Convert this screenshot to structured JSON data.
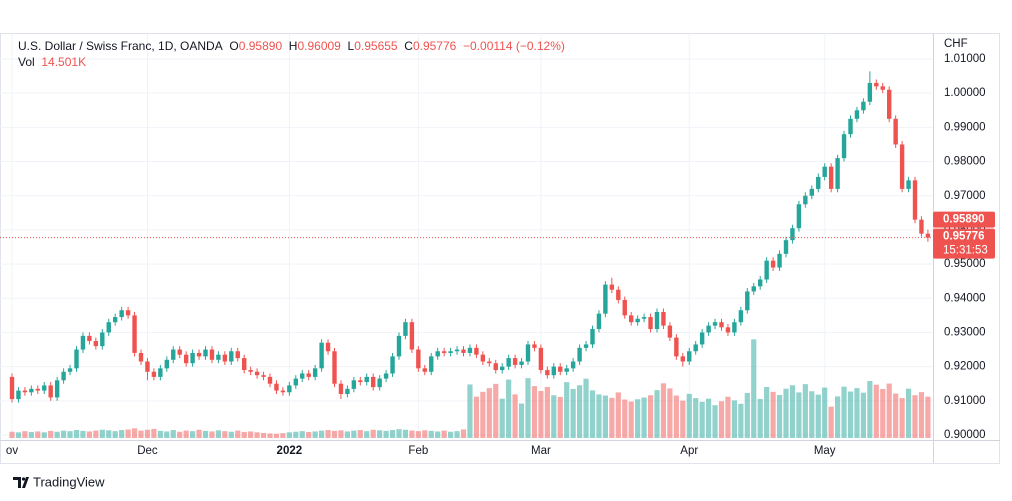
{
  "header": {
    "symbol": "U.S. Dollar / Swiss Franc, 1D, OANDA",
    "ohlc": [
      {
        "label": "O",
        "value": "0.95890"
      },
      {
        "label": "H",
        "value": "0.96009"
      },
      {
        "label": "L",
        "value": "0.95655"
      },
      {
        "label": "C",
        "value": "0.95776"
      }
    ],
    "change": "−0.00114 (−0.12%)",
    "vol_label": "Vol",
    "vol_value": "14.501K"
  },
  "chart_data": {
    "type": "candlestick",
    "open": [
      0.917,
      0.9105,
      0.913,
      0.9125,
      0.9135,
      0.913,
      0.9145,
      0.911,
      0.916,
      0.9185,
      0.9195,
      0.925,
      0.929,
      0.9275,
      0.926,
      0.93,
      0.933,
      0.9345,
      0.9365,
      0.935,
      0.924,
      0.9215,
      0.9185,
      0.917,
      0.9195,
      0.922,
      0.925,
      0.9235,
      0.921,
      0.924,
      0.923,
      0.925,
      0.922,
      0.9235,
      0.9215,
      0.9245,
      0.9225,
      0.919,
      0.9185,
      0.9175,
      0.917,
      0.915,
      0.913,
      0.9125,
      0.9145,
      0.9165,
      0.918,
      0.917,
      0.9195,
      0.927,
      0.9245,
      0.915,
      0.912,
      0.9135,
      0.916,
      0.9155,
      0.917,
      0.914,
      0.9165,
      0.918,
      0.923,
      0.929,
      0.933,
      0.925,
      0.9195,
      0.9185,
      0.923,
      0.9245,
      0.924,
      0.9245,
      0.925,
      0.924,
      0.9255,
      0.9235,
      0.9215,
      0.921,
      0.919,
      0.92,
      0.9225,
      0.9205,
      0.9215,
      0.9265,
      0.9255,
      0.919,
      0.9175,
      0.92,
      0.9185,
      0.9195,
      0.9215,
      0.9255,
      0.9265,
      0.931,
      0.9355,
      0.944,
      0.9425,
      0.9395,
      0.935,
      0.933,
      0.934,
      0.9345,
      0.931,
      0.936,
      0.932,
      0.9285,
      0.923,
      0.9215,
      0.9245,
      0.9265,
      0.93,
      0.932,
      0.933,
      0.9315,
      0.93,
      0.933,
      0.9365,
      0.942,
      0.9435,
      0.9455,
      0.951,
      0.949,
      0.953,
      0.957,
      0.9605,
      0.9675,
      0.97,
      0.972,
      0.9755,
      0.9785,
      0.972,
      0.981,
      0.988,
      0.9925,
      0.995,
      0.9975,
      1.003,
      1.002,
      1.001,
      0.9925,
      0.985,
      0.972,
      0.9745,
      0.963,
      0.9589
    ],
    "high": [
      0.918,
      0.914,
      0.914,
      0.9145,
      0.9145,
      0.9155,
      0.9155,
      0.917,
      0.9195,
      0.9205,
      0.926,
      0.93,
      0.93,
      0.9285,
      0.931,
      0.934,
      0.9355,
      0.9375,
      0.9375,
      0.936,
      0.925,
      0.9225,
      0.9195,
      0.9205,
      0.923,
      0.926,
      0.926,
      0.9245,
      0.925,
      0.925,
      0.926,
      0.926,
      0.9245,
      0.9245,
      0.9255,
      0.9255,
      0.9235,
      0.92,
      0.9195,
      0.9185,
      0.918,
      0.916,
      0.914,
      0.9155,
      0.9175,
      0.919,
      0.919,
      0.9205,
      0.928,
      0.928,
      0.9255,
      0.916,
      0.9145,
      0.917,
      0.917,
      0.918,
      0.918,
      0.9175,
      0.919,
      0.924,
      0.93,
      0.934,
      0.934,
      0.926,
      0.9205,
      0.924,
      0.9255,
      0.9255,
      0.9255,
      0.926,
      0.926,
      0.9265,
      0.9265,
      0.9245,
      0.9225,
      0.922,
      0.921,
      0.9235,
      0.9235,
      0.9225,
      0.9275,
      0.9275,
      0.9265,
      0.92,
      0.921,
      0.921,
      0.9205,
      0.9225,
      0.9265,
      0.9275,
      0.932,
      0.9365,
      0.945,
      0.946,
      0.9435,
      0.9405,
      0.936,
      0.935,
      0.9355,
      0.9355,
      0.937,
      0.937,
      0.933,
      0.9295,
      0.924,
      0.9255,
      0.9275,
      0.931,
      0.933,
      0.934,
      0.934,
      0.9325,
      0.934,
      0.9375,
      0.943,
      0.9445,
      0.9465,
      0.952,
      0.952,
      0.954,
      0.958,
      0.9615,
      0.9685,
      0.971,
      0.973,
      0.9765,
      0.9795,
      0.9795,
      0.982,
      0.989,
      0.9935,
      0.996,
      0.9985,
      1.0064,
      1.004,
      1.003,
      1.002,
      0.9935,
      0.986,
      0.9755,
      0.9755,
      0.964,
      0.96009
    ],
    "low": [
      0.9095,
      0.9095,
      0.9115,
      0.9115,
      0.912,
      0.912,
      0.91,
      0.91,
      0.915,
      0.9175,
      0.9185,
      0.924,
      0.9265,
      0.925,
      0.925,
      0.929,
      0.932,
      0.9335,
      0.934,
      0.923,
      0.9205,
      0.916,
      0.916,
      0.916,
      0.9185,
      0.921,
      0.9225,
      0.92,
      0.92,
      0.922,
      0.922,
      0.921,
      0.921,
      0.9205,
      0.9205,
      0.9215,
      0.918,
      0.9175,
      0.9165,
      0.916,
      0.914,
      0.912,
      0.9115,
      0.9115,
      0.9135,
      0.9155,
      0.916,
      0.916,
      0.9185,
      0.9235,
      0.914,
      0.9105,
      0.911,
      0.9125,
      0.9145,
      0.9145,
      0.913,
      0.913,
      0.9155,
      0.917,
      0.922,
      0.928,
      0.924,
      0.9185,
      0.9175,
      0.9175,
      0.922,
      0.923,
      0.923,
      0.9235,
      0.923,
      0.923,
      0.9225,
      0.9205,
      0.92,
      0.918,
      0.918,
      0.919,
      0.9195,
      0.9195,
      0.9205,
      0.9245,
      0.918,
      0.9165,
      0.9165,
      0.9175,
      0.9175,
      0.9185,
      0.9205,
      0.9245,
      0.9255,
      0.93,
      0.9345,
      0.9415,
      0.9385,
      0.934,
      0.932,
      0.932,
      0.933,
      0.93,
      0.93,
      0.931,
      0.9275,
      0.922,
      0.92,
      0.9205,
      0.9235,
      0.9255,
      0.929,
      0.931,
      0.9305,
      0.929,
      0.929,
      0.932,
      0.9355,
      0.941,
      0.9425,
      0.9445,
      0.948,
      0.948,
      0.952,
      0.956,
      0.9595,
      0.9665,
      0.969,
      0.971,
      0.9745,
      0.971,
      0.971,
      0.98,
      0.987,
      0.9915,
      0.994,
      0.9965,
      1.001,
      1.0,
      0.9915,
      0.984,
      0.971,
      0.971,
      0.962,
      0.958,
      0.95655
    ],
    "close": [
      0.9105,
      0.913,
      0.9125,
      0.9135,
      0.913,
      0.9145,
      0.911,
      0.916,
      0.9185,
      0.9195,
      0.925,
      0.929,
      0.9275,
      0.926,
      0.93,
      0.933,
      0.9345,
      0.9365,
      0.935,
      0.924,
      0.9215,
      0.9185,
      0.917,
      0.9195,
      0.922,
      0.925,
      0.9235,
      0.921,
      0.924,
      0.923,
      0.925,
      0.922,
      0.9235,
      0.9215,
      0.9245,
      0.9225,
      0.919,
      0.9185,
      0.9175,
      0.917,
      0.915,
      0.913,
      0.9125,
      0.9145,
      0.9165,
      0.918,
      0.917,
      0.9195,
      0.927,
      0.9245,
      0.915,
      0.912,
      0.9135,
      0.916,
      0.9155,
      0.917,
      0.914,
      0.9165,
      0.918,
      0.923,
      0.929,
      0.933,
      0.925,
      0.9195,
      0.9185,
      0.923,
      0.9245,
      0.924,
      0.9245,
      0.925,
      0.924,
      0.9255,
      0.9235,
      0.9215,
      0.921,
      0.919,
      0.92,
      0.9225,
      0.9205,
      0.9215,
      0.9265,
      0.9255,
      0.919,
      0.9175,
      0.92,
      0.9185,
      0.9195,
      0.9215,
      0.9255,
      0.9265,
      0.931,
      0.9355,
      0.944,
      0.9425,
      0.9395,
      0.935,
      0.933,
      0.934,
      0.9345,
      0.931,
      0.936,
      0.932,
      0.9285,
      0.923,
      0.9215,
      0.9245,
      0.9265,
      0.93,
      0.932,
      0.933,
      0.9315,
      0.93,
      0.933,
      0.9365,
      0.942,
      0.9435,
      0.9455,
      0.951,
      0.949,
      0.953,
      0.957,
      0.9605,
      0.9675,
      0.97,
      0.972,
      0.9755,
      0.9785,
      0.972,
      0.981,
      0.988,
      0.9925,
      0.995,
      0.9975,
      1.003,
      1.002,
      1.001,
      0.9925,
      0.985,
      0.972,
      0.9745,
      0.963,
      0.9589,
      0.95776
    ],
    "volume": [
      2.2,
      2.0,
      2.4,
      2.1,
      2.3,
      2.0,
      2.5,
      2.2,
      2.6,
      2.4,
      2.8,
      2.5,
      2.3,
      2.6,
      2.9,
      2.7,
      2.4,
      2.8,
      3.0,
      3.4,
      2.6,
      2.9,
      3.2,
      2.5,
      2.3,
      2.8,
      2.2,
      2.6,
      2.4,
      2.9,
      2.5,
      2.3,
      2.7,
      2.4,
      2.2,
      2.6,
      2.1,
      2.3,
      2.0,
      1.8,
      1.6,
      1.5,
      1.7,
      2.0,
      2.2,
      2.4,
      2.1,
      2.3,
      2.6,
      2.8,
      2.5,
      2.7,
      2.3,
      2.6,
      2.8,
      2.4,
      2.9,
      2.7,
      2.5,
      2.8,
      3.1,
      2.9,
      2.6,
      2.4,
      2.7,
      2.5,
      2.3,
      2.6,
      2.2,
      2.4,
      3.0,
      18.8,
      14.5,
      16.2,
      17.5,
      19.0,
      13.8,
      20.5,
      15.3,
      12.1,
      21.0,
      18.2,
      16.5,
      17.9,
      15.0,
      14.4,
      19.6,
      17.2,
      18.5,
      20.8,
      16.7,
      15.3,
      14.9,
      14.1,
      16.0,
      13.5,
      12.8,
      13.6,
      14.2,
      15.0,
      16.8,
      19.2,
      17.4,
      14.9,
      13.1,
      15.5,
      14.0,
      12.7,
      13.8,
      11.5,
      12.9,
      14.5,
      13.2,
      12.0,
      15.8,
      34.6,
      13.7,
      17.9,
      16.2,
      15.1,
      17.3,
      18.5,
      16.0,
      18.9,
      16.4,
      15.2,
      17.7,
      11.0,
      14.6,
      18.0,
      16.3,
      17.5,
      15.9,
      20.0,
      18.7,
      17.2,
      19.1,
      15.6,
      14.0,
      17.3,
      15.0,
      16.1,
      14.501
    ],
    "volume_ylim": [
      0,
      133
    ],
    "up_color": "#26a69a",
    "down_color": "#ef5350",
    "ylim": [
      0.9,
      1.01
    ],
    "yticks": [
      {
        "value": 1.01,
        "label": "1.01000"
      },
      {
        "value": 1.0,
        "label": "1.00000"
      },
      {
        "value": 0.99,
        "label": "0.99000"
      },
      {
        "value": 0.98,
        "label": "0.98000"
      },
      {
        "value": 0.97,
        "label": "0.97000"
      },
      {
        "value": 0.96,
        "label": "0.96000"
      },
      {
        "value": 0.95,
        "label": "0.95000"
      },
      {
        "value": 0.94,
        "label": "0.94000"
      },
      {
        "value": 0.93,
        "label": "0.93000"
      },
      {
        "value": 0.92,
        "label": "0.92000"
      },
      {
        "value": 0.91,
        "label": "0.91000"
      },
      {
        "value": 0.9,
        "label": "0.90000"
      }
    ],
    "y_unit": "CHF",
    "xticks": [
      {
        "value": 0,
        "label": "ov"
      },
      {
        "value": 21,
        "label": "Dec"
      },
      {
        "value": 43,
        "label": "2022"
      },
      {
        "value": 63,
        "label": "Feb"
      },
      {
        "value": 82,
        "label": "Mar"
      },
      {
        "value": 105,
        "label": "Apr"
      },
      {
        "value": 126,
        "label": "May"
      }
    ],
    "price_labels": [
      {
        "value": 0.9589,
        "label": "0.95890"
      },
      {
        "value": 0.95776,
        "label": "0.95776"
      }
    ],
    "countdown": "15:31:53",
    "grid": true
  },
  "footer": {
    "brand": "TradingView"
  }
}
